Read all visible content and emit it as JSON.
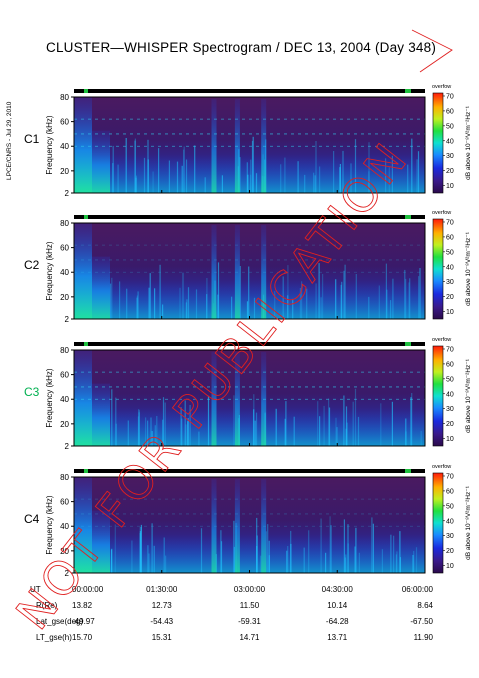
{
  "title": "CLUSTER—WHISPER Spectrogram / DEC 13, 2004 (Day 348)",
  "side_note": "LPCE/CNRS - Jul 29, 2010",
  "watermark": "NOT FOR PUBLICATION",
  "colors": {
    "spacecraft_c3": "#00b050",
    "watermark": "#e02020",
    "panel_bg": "#3a1a5a"
  },
  "chart_data": {
    "type": "heatmap",
    "panels": [
      {
        "name": "C1",
        "ylabel": "Frequency (kHz)",
        "yticks": [
          "80",
          "60",
          "40",
          "20",
          "2"
        ],
        "ylim": [
          2,
          80
        ],
        "ytick_values": [
          80,
          60,
          40,
          20,
          2
        ]
      },
      {
        "name": "C2",
        "ylabel": "Frequency (kHz)",
        "yticks": [
          "80",
          "60",
          "40",
          "20",
          "2"
        ],
        "ylim": [
          2,
          80
        ],
        "ytick_values": [
          80,
          60,
          40,
          20,
          2
        ]
      },
      {
        "name": "C3",
        "ylabel": "Frequency (kHz)",
        "yticks": [
          "80",
          "60",
          "40",
          "20",
          "2"
        ],
        "ylim": [
          2,
          80
        ],
        "ytick_values": [
          80,
          60,
          40,
          20,
          2
        ]
      },
      {
        "name": "C4",
        "ylabel": "Frequency (kHz)",
        "yticks": [
          "80",
          "60",
          "40",
          "20",
          "2"
        ],
        "ylim": [
          2,
          80
        ],
        "ytick_values": [
          80,
          60,
          40,
          20,
          2
        ]
      }
    ],
    "colorbar": {
      "label": "dB above 10⁻⁸V²m⁻²Hz⁻¹",
      "ticks": [
        "70",
        "60",
        "50",
        "40",
        "30",
        "20",
        "10"
      ],
      "tick_values": [
        70,
        60,
        50,
        40,
        30,
        20,
        10
      ],
      "range": [
        5,
        72
      ],
      "header": "overfow"
    },
    "x_axis": {
      "ticks": [
        "00:00:00",
        "01:30:00",
        "03:00:00",
        "04:30:00",
        "06:00:00"
      ],
      "range_hours": [
        0,
        6
      ]
    },
    "ephemeris": {
      "row_labels": [
        "UT",
        "R(Re)",
        "Lat_gse(deg)",
        "LT_gse(h)"
      ],
      "columns": [
        {
          "ut": "00:00:00",
          "r": "13.82",
          "lat": "-49.97",
          "lt": "15.70"
        },
        {
          "ut": "01:30:00",
          "r": "12.73",
          "lat": "-54.43",
          "lt": "15.31"
        },
        {
          "ut": "03:00:00",
          "r": "11.50",
          "lat": "-59.31",
          "lt": "14.71"
        },
        {
          "ut": "04:30:00",
          "r": "10.14",
          "lat": "-64.28",
          "lt": "13.71"
        },
        {
          "ut": "06:00:00",
          "r": "8.64",
          "lat": "-67.50",
          "lt": "11.90"
        }
      ]
    }
  }
}
